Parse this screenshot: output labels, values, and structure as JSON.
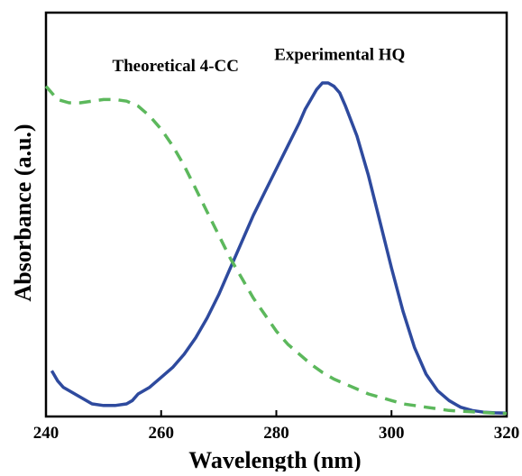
{
  "chart_data": {
    "type": "line",
    "xlabel": "Wavelength (nm)",
    "ylabel": "Absorbance (a.u.)",
    "xlim": [
      240,
      320
    ],
    "ylim": [
      0,
      1.0
    ],
    "xticks": [
      240,
      260,
      280,
      300,
      320
    ],
    "y_tick_labels_shown": false,
    "grid": false,
    "series": [
      {
        "name": "Experimental HQ",
        "style": "solid",
        "color": "#2e4a9e",
        "x": [
          241,
          242,
          243,
          244,
          246,
          248,
          250,
          252,
          254,
          255,
          256,
          258,
          260,
          262,
          264,
          266,
          268,
          270,
          272,
          274,
          276,
          278,
          280,
          282,
          284,
          285,
          286,
          287,
          288,
          289,
          290,
          291,
          292,
          294,
          296,
          298,
          300,
          302,
          304,
          306,
          308,
          310,
          312,
          314,
          316,
          318,
          320
        ],
        "y": [
          0.13,
          0.1,
          0.08,
          0.07,
          0.05,
          0.03,
          0.025,
          0.025,
          0.03,
          0.04,
          0.06,
          0.08,
          0.11,
          0.14,
          0.18,
          0.23,
          0.29,
          0.36,
          0.44,
          0.52,
          0.6,
          0.67,
          0.74,
          0.81,
          0.88,
          0.92,
          0.95,
          0.98,
          1.0,
          1.0,
          0.99,
          0.97,
          0.93,
          0.84,
          0.72,
          0.58,
          0.44,
          0.31,
          0.2,
          0.12,
          0.07,
          0.04,
          0.02,
          0.01,
          0.005,
          0.003,
          0.002
        ]
      },
      {
        "name": "Theoretical 4-CC",
        "style": "dashed",
        "color": "#5cb85c",
        "x": [
          240,
          241,
          242,
          244,
          246,
          248,
          250,
          252,
          254,
          256,
          258,
          260,
          262,
          264,
          266,
          268,
          270,
          272,
          274,
          276,
          278,
          280,
          282,
          284,
          286,
          288,
          290,
          292,
          294,
          296,
          298,
          300,
          302,
          304,
          306,
          308,
          310,
          312,
          314,
          316,
          318,
          320
        ],
        "y": [
          0.99,
          0.97,
          0.95,
          0.94,
          0.94,
          0.945,
          0.95,
          0.95,
          0.945,
          0.93,
          0.9,
          0.86,
          0.81,
          0.75,
          0.68,
          0.61,
          0.54,
          0.47,
          0.41,
          0.35,
          0.3,
          0.25,
          0.21,
          0.18,
          0.15,
          0.125,
          0.105,
          0.09,
          0.075,
          0.06,
          0.05,
          0.04,
          0.03,
          0.025,
          0.02,
          0.015,
          0.01,
          0.008,
          0.006,
          0.004,
          0.002,
          0.001
        ]
      }
    ],
    "annotations": [
      {
        "text": "Theoretical 4-CC",
        "x": 262.5,
        "y": 1.035
      },
      {
        "text": "Experimental HQ",
        "x": 291,
        "y": 1.07
      }
    ]
  }
}
